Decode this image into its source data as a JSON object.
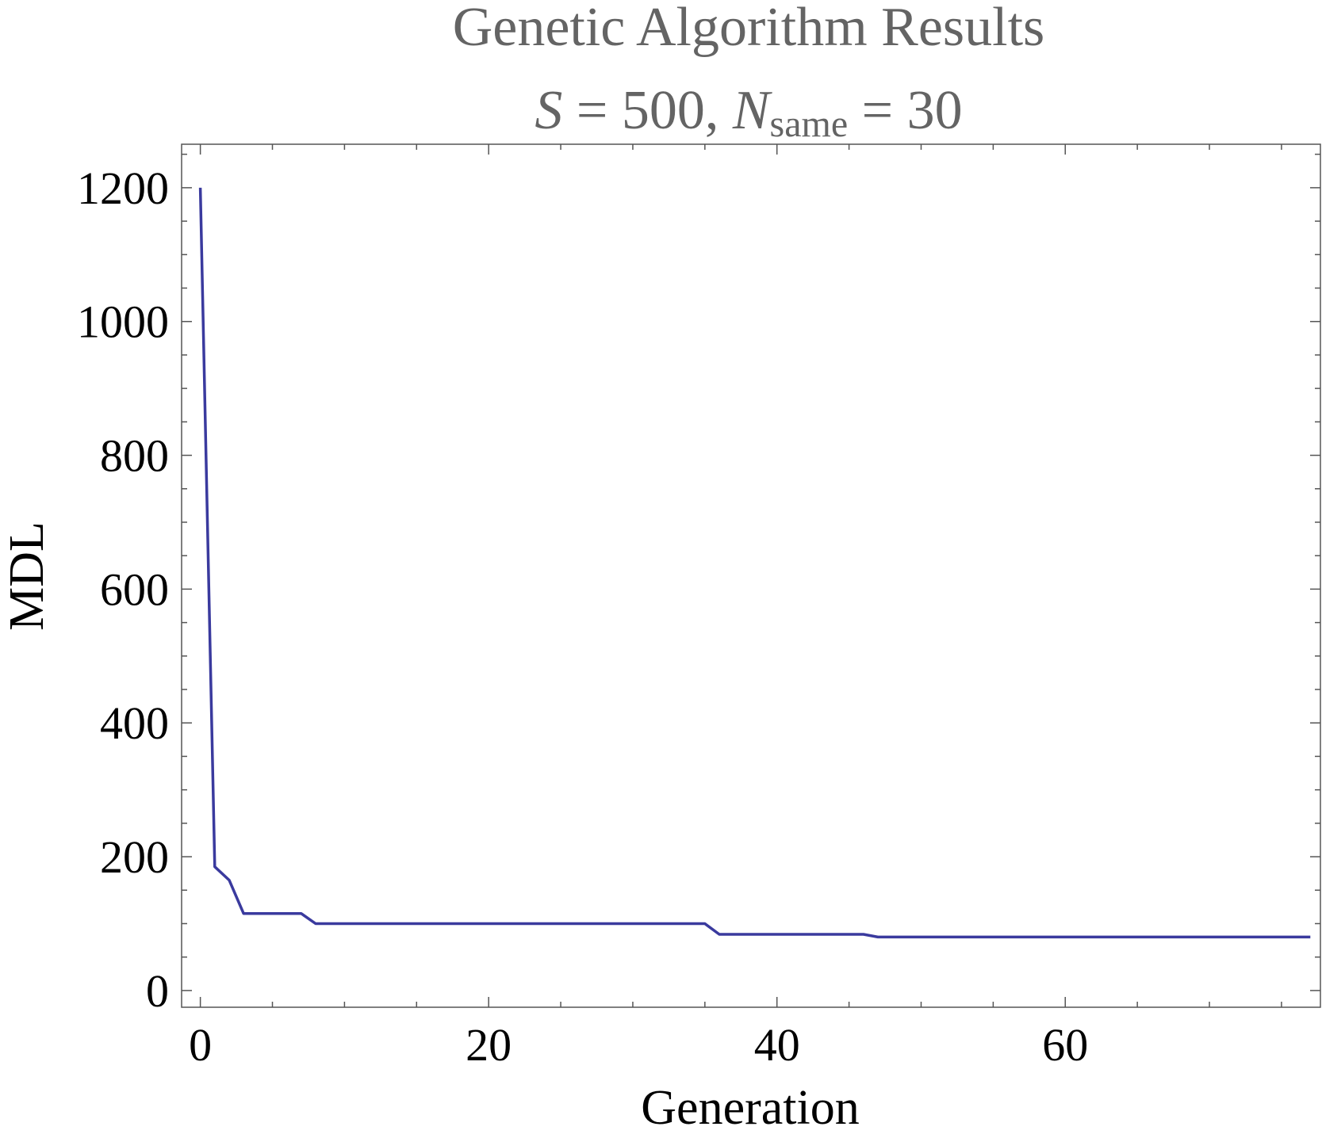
{
  "chart_data": {
    "type": "line",
    "title": "Genetic Algorithm Results",
    "subtitle": {
      "s_symbol": "S",
      "s_value": " = 500, ",
      "n_symbol": "N",
      "n_subscript": "same",
      "n_value": " = 30"
    },
    "xlabel": "Generation",
    "ylabel": "MDL",
    "xlim": [
      -1.3,
      77.7
    ],
    "ylim": [
      -25,
      1265
    ],
    "xticks": [
      0,
      20,
      40,
      60
    ],
    "yticks": [
      0,
      200,
      400,
      600,
      800,
      1000,
      1200
    ],
    "grid": false,
    "line_color": "#3a3a9e",
    "series": [
      {
        "x": [
          0,
          1,
          2,
          3,
          4,
          5,
          6,
          7,
          8,
          9,
          10,
          11,
          12,
          13,
          14,
          15,
          16,
          17,
          18,
          19,
          20,
          21,
          22,
          23,
          24,
          25,
          26,
          27,
          28,
          29,
          30,
          31,
          32,
          33,
          34,
          35,
          36,
          37,
          38,
          39,
          40,
          41,
          42,
          43,
          44,
          45,
          46,
          47,
          48,
          49,
          50,
          51,
          52,
          53,
          54,
          55,
          56,
          57,
          58,
          59,
          60,
          61,
          62,
          63,
          64,
          65,
          66,
          67,
          68,
          69,
          70,
          71,
          72,
          73,
          74,
          75,
          76,
          77
        ],
        "y": [
          1200,
          185,
          165,
          115,
          115,
          115,
          115,
          115,
          100,
          100,
          100,
          100,
          100,
          100,
          100,
          100,
          100,
          100,
          100,
          100,
          100,
          100,
          100,
          100,
          100,
          100,
          100,
          100,
          100,
          100,
          100,
          100,
          100,
          100,
          100,
          100,
          84,
          84,
          84,
          84,
          84,
          84,
          84,
          84,
          84,
          84,
          84,
          80,
          80,
          80,
          80,
          80,
          80,
          80,
          80,
          80,
          80,
          80,
          80,
          80,
          80,
          80,
          80,
          80,
          80,
          80,
          80,
          80,
          80,
          80,
          80,
          80,
          80,
          80,
          80,
          80,
          80,
          80
        ]
      }
    ]
  }
}
